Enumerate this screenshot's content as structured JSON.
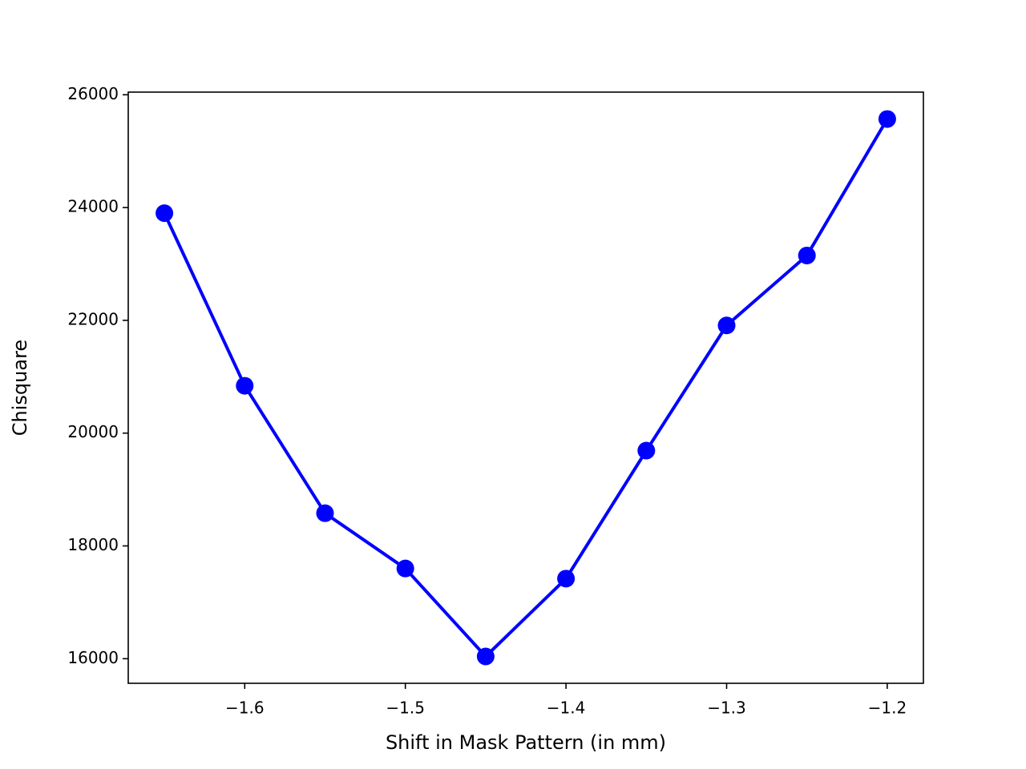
{
  "chart_data": {
    "type": "line",
    "x_label": "Shift in Mask Pattern (in mm)",
    "y_label": "Chisquare",
    "x": [
      -1.65,
      -1.6,
      -1.55,
      -1.5,
      -1.45,
      -1.4,
      -1.35,
      -1.3,
      -1.25,
      -1.2
    ],
    "series": [
      {
        "color": "#0000ff",
        "values": [
          23900,
          20840,
          18580,
          17600,
          16040,
          17420,
          19690,
          21910,
          23150,
          25570
        ]
      }
    ],
    "xlim": [
      -1.6725,
      -1.1775
    ],
    "ylim": [
      15564,
      26047
    ],
    "xticks": [
      {
        "value": -1.6,
        "label": "−1.6"
      },
      {
        "value": -1.5,
        "label": "−1.5"
      },
      {
        "value": -1.4,
        "label": "−1.4"
      },
      {
        "value": -1.3,
        "label": "−1.3"
      },
      {
        "value": -1.2,
        "label": "−1.2"
      }
    ],
    "yticks": [
      16000,
      18000,
      20000,
      22000,
      24000,
      26000
    ],
    "grid": false
  }
}
